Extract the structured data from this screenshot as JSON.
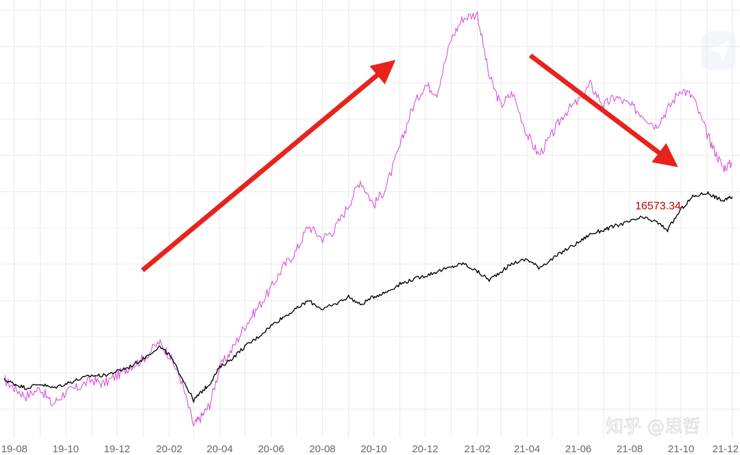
{
  "chart_data": {
    "type": "line",
    "title": "",
    "xlabel": "",
    "ylabel": "",
    "x_tick_labels": [
      "19-08",
      "19-10",
      "19-12",
      "20-02",
      "20-04",
      "20-06",
      "20-08",
      "20-10",
      "20-12",
      "21-02",
      "21-04",
      "21-06",
      "21-08",
      "21-10",
      "21-12"
    ],
    "value_label": {
      "text": "16573.34",
      "series": 1,
      "color": "#c00000"
    },
    "colors": {
      "series_1": "#d94fd9",
      "series_2": "#000000",
      "arrows": "#e8231c",
      "grid": "#e8e8e8"
    },
    "series": [
      {
        "color": "#d94fd9",
        "points": [
          [
            "2019-07-20",
            0.86
          ],
          [
            "2019-08-01",
            0.84
          ],
          [
            "2019-08-15",
            0.82
          ],
          [
            "2019-09-01",
            0.84
          ],
          [
            "2019-09-15",
            0.8
          ],
          [
            "2019-10-01",
            0.83
          ],
          [
            "2019-10-15",
            0.84
          ],
          [
            "2019-11-01",
            0.86
          ],
          [
            "2019-11-15",
            0.85
          ],
          [
            "2019-12-01",
            0.87
          ],
          [
            "2019-12-15",
            0.89
          ],
          [
            "2020-01-01",
            0.91
          ],
          [
            "2020-01-20",
            0.95
          ],
          [
            "2020-02-01",
            0.92
          ],
          [
            "2020-02-15",
            0.86
          ],
          [
            "2020-03-01",
            0.75
          ],
          [
            "2020-03-10",
            0.77
          ],
          [
            "2020-03-20",
            0.8
          ],
          [
            "2020-04-01",
            0.89
          ],
          [
            "2020-04-15",
            0.93
          ],
          [
            "2020-05-01",
            0.99
          ],
          [
            "2020-05-15",
            1.03
          ],
          [
            "2020-06-01",
            1.08
          ],
          [
            "2020-06-15",
            1.13
          ],
          [
            "2020-07-01",
            1.17
          ],
          [
            "2020-07-15",
            1.23
          ],
          [
            "2020-08-01",
            1.2
          ],
          [
            "2020-08-15",
            1.22
          ],
          [
            "2020-09-01",
            1.28
          ],
          [
            "2020-09-15",
            1.34
          ],
          [
            "2020-10-01",
            1.28
          ],
          [
            "2020-10-15",
            1.32
          ],
          [
            "2020-11-01",
            1.42
          ],
          [
            "2020-11-15",
            1.51
          ],
          [
            "2020-12-01",
            1.57
          ],
          [
            "2020-12-15",
            1.55
          ],
          [
            "2021-01-01",
            1.68
          ],
          [
            "2021-01-15",
            1.73
          ],
          [
            "2021-02-01",
            1.74
          ],
          [
            "2021-02-15",
            1.59
          ],
          [
            "2021-03-01",
            1.52
          ],
          [
            "2021-03-15",
            1.55
          ],
          [
            "2021-04-01",
            1.45
          ],
          [
            "2021-04-15",
            1.4
          ],
          [
            "2021-05-01",
            1.45
          ],
          [
            "2021-05-15",
            1.5
          ],
          [
            "2021-06-01",
            1.53
          ],
          [
            "2021-06-15",
            1.57
          ],
          [
            "2021-07-01",
            1.52
          ],
          [
            "2021-07-15",
            1.54
          ],
          [
            "2021-08-01",
            1.52
          ],
          [
            "2021-08-15",
            1.5
          ],
          [
            "2021-09-01",
            1.47
          ],
          [
            "2021-09-15",
            1.51
          ],
          [
            "2021-10-01",
            1.56
          ],
          [
            "2021-10-15",
            1.54
          ],
          [
            "2021-11-01",
            1.45
          ],
          [
            "2021-11-10",
            1.41
          ],
          [
            "2021-11-20",
            1.37
          ],
          [
            "2021-12-01",
            1.38
          ]
        ]
      },
      {
        "color": "#000000",
        "points": [
          [
            "2019-07-20",
            0.86
          ],
          [
            "2019-08-01",
            0.85
          ],
          [
            "2019-08-15",
            0.84
          ],
          [
            "2019-09-01",
            0.85
          ],
          [
            "2019-09-15",
            0.84
          ],
          [
            "2019-10-01",
            0.85
          ],
          [
            "2019-10-15",
            0.86
          ],
          [
            "2019-11-01",
            0.87
          ],
          [
            "2019-11-15",
            0.87
          ],
          [
            "2019-12-01",
            0.88
          ],
          [
            "2019-12-15",
            0.89
          ],
          [
            "2020-01-01",
            0.91
          ],
          [
            "2020-01-20",
            0.94
          ],
          [
            "2020-02-01",
            0.92
          ],
          [
            "2020-02-15",
            0.87
          ],
          [
            "2020-03-01",
            0.81
          ],
          [
            "2020-03-10",
            0.83
          ],
          [
            "2020-03-20",
            0.85
          ],
          [
            "2020-04-01",
            0.89
          ],
          [
            "2020-04-15",
            0.91
          ],
          [
            "2020-05-01",
            0.94
          ],
          [
            "2020-05-15",
            0.96
          ],
          [
            "2020-06-01",
            0.99
          ],
          [
            "2020-06-15",
            1.01
          ],
          [
            "2020-07-01",
            1.03
          ],
          [
            "2020-07-15",
            1.05
          ],
          [
            "2020-08-01",
            1.03
          ],
          [
            "2020-08-15",
            1.04
          ],
          [
            "2020-09-01",
            1.06
          ],
          [
            "2020-09-15",
            1.04
          ],
          [
            "2020-10-01",
            1.06
          ],
          [
            "2020-10-15",
            1.07
          ],
          [
            "2020-11-01",
            1.09
          ],
          [
            "2020-11-15",
            1.1
          ],
          [
            "2020-12-01",
            1.11
          ],
          [
            "2020-12-15",
            1.12
          ],
          [
            "2021-01-01",
            1.13
          ],
          [
            "2021-01-15",
            1.14
          ],
          [
            "2021-02-01",
            1.12
          ],
          [
            "2021-02-15",
            1.1
          ],
          [
            "2021-03-01",
            1.12
          ],
          [
            "2021-03-15",
            1.14
          ],
          [
            "2021-04-01",
            1.15
          ],
          [
            "2021-04-15",
            1.13
          ],
          [
            "2021-05-01",
            1.15
          ],
          [
            "2021-05-15",
            1.17
          ],
          [
            "2021-06-01",
            1.19
          ],
          [
            "2021-06-15",
            1.21
          ],
          [
            "2021-07-01",
            1.22
          ],
          [
            "2021-07-15",
            1.23
          ],
          [
            "2021-08-01",
            1.24
          ],
          [
            "2021-08-15",
            1.25
          ],
          [
            "2021-09-01",
            1.24
          ],
          [
            "2021-09-15",
            1.22
          ],
          [
            "2021-10-01",
            1.27
          ],
          [
            "2021-10-15",
            1.3
          ],
          [
            "2021-11-01",
            1.31
          ],
          [
            "2021-11-10",
            1.3
          ],
          [
            "2021-11-20",
            1.29
          ],
          [
            "2021-12-01",
            1.3
          ]
        ]
      }
    ],
    "x_range": [
      "2019-07-15",
      "2021-12-10"
    ],
    "y_range": [
      0.72,
      1.76
    ],
    "grid": true,
    "annotations": [
      {
        "type": "arrow",
        "color": "#e8231c",
        "description": "upward trend arrow"
      },
      {
        "type": "arrow",
        "color": "#e8231c",
        "description": "downward trend arrow"
      }
    ]
  },
  "watermark": {
    "text": "知乎 @思哲",
    "icon": "paper-plane-icon"
  }
}
